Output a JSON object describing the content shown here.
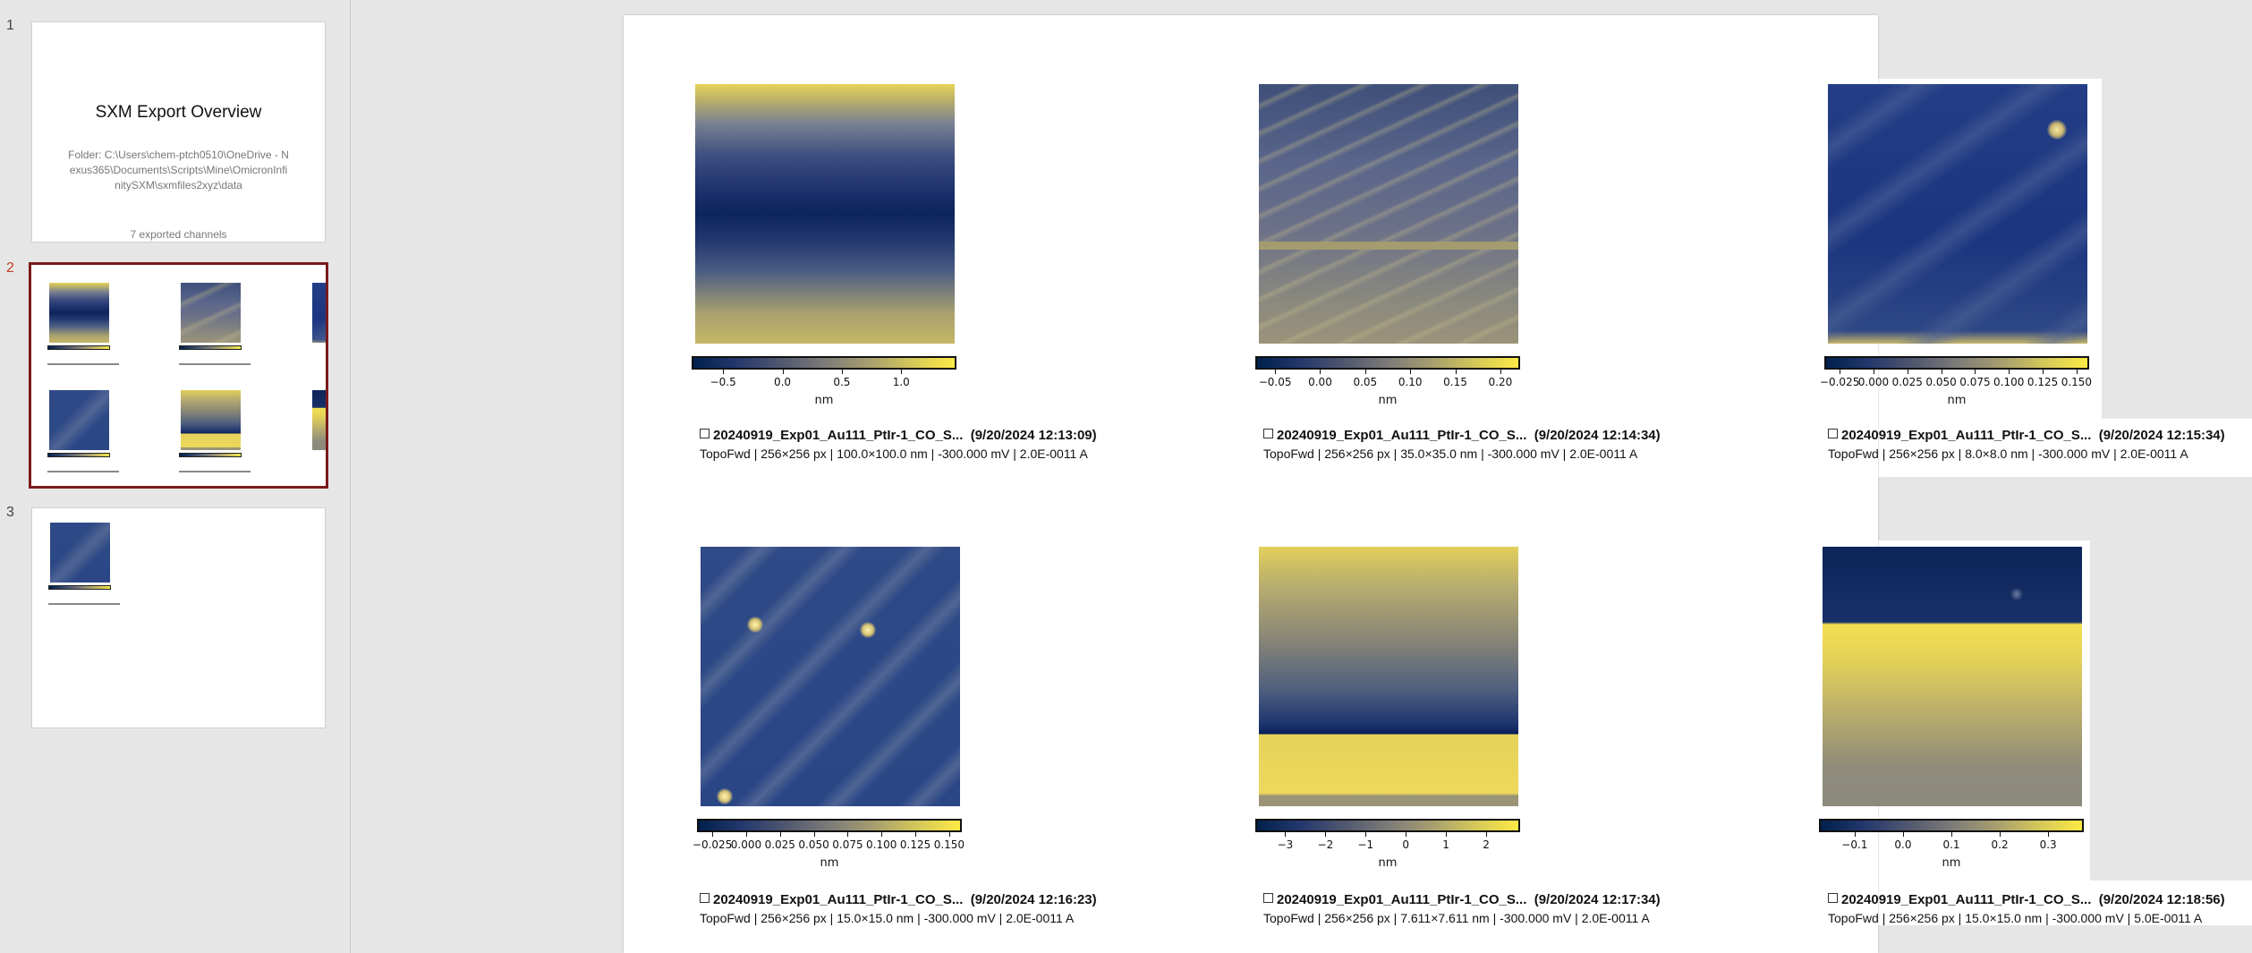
{
  "thumbnails": {
    "numbers": [
      "1",
      "2",
      "3"
    ],
    "slide1": {
      "title": "SXM Export Overview",
      "folder": "Folder: C:\\Users\\chem-ptch0510\\OneDrive - Nexus365\\Documents\\Scripts\\Mine\\OmicronInfinitySXM\\sxmfiles2xyz\\data",
      "channels": "7 exported channels"
    }
  },
  "colors": {
    "colormap": [
      "#00204c",
      "#7c7b78",
      "#fdea45"
    ],
    "active_thumb_border": "#7b1a1a",
    "active_thumb_number": "#c43e1c"
  },
  "panels": [
    {
      "title": "20240919_Exp01_Au111_PtIr-1_CO_S...",
      "timestamp": "(9/20/2024 12:13:09)",
      "meta": "TopoFwd | 256×256 px | 100.0×100.0 nm | -300.000 mV | 2.0E-0011 A",
      "colorbar": {
        "min": -0.75,
        "max": 1.45,
        "ticks": [
          -0.5,
          0.0,
          0.5,
          1.0
        ],
        "tick_labels": [
          "−0.5",
          "0.0",
          "0.5",
          "1.0"
        ],
        "unit": "nm"
      }
    },
    {
      "title": "20240919_Exp01_Au111_PtIr-1_CO_S...",
      "timestamp": "(9/20/2024 12:14:34)",
      "meta": "TopoFwd | 256×256 px | 35.0×35.0 nm | -300.000 mV | 2.0E-0011 A",
      "colorbar": {
        "min": -0.07,
        "max": 0.22,
        "ticks": [
          -0.05,
          0.0,
          0.05,
          0.1,
          0.15,
          0.2
        ],
        "tick_labels": [
          "−0.05",
          "0.00",
          "0.05",
          "0.10",
          "0.15",
          "0.20"
        ],
        "unit": "nm"
      }
    },
    {
      "title": "20240919_Exp01_Au111_PtIr-1_CO_S...",
      "timestamp": "(9/20/2024 12:15:34)",
      "meta": "TopoFwd | 256×256 px | 8.0×8.0 nm | -300.000 mV | 2.0E-0011 A",
      "colorbar": {
        "min": -0.035,
        "max": 0.158,
        "ticks": [
          -0.025,
          0.0,
          0.025,
          0.05,
          0.075,
          0.1,
          0.125,
          0.15
        ],
        "tick_labels": [
          "−0.025",
          "0.000",
          "0.025",
          "0.050",
          "0.075",
          "0.100",
          "0.125",
          "0.150"
        ],
        "unit": "nm"
      }
    },
    {
      "title": "20240919_Exp01_Au111_PtIr-1_CO_S...",
      "timestamp": "(9/20/2024 12:16:23)",
      "meta": "TopoFwd | 256×256 px | 15.0×15.0 nm | -300.000 mV | 2.0E-0011 A",
      "colorbar": {
        "min": -0.035,
        "max": 0.158,
        "ticks": [
          -0.025,
          0.0,
          0.025,
          0.05,
          0.075,
          0.1,
          0.125,
          0.15
        ],
        "tick_labels": [
          "−0.025",
          "0.000",
          "0.025",
          "0.050",
          "0.075",
          "0.100",
          "0.125",
          "0.150"
        ],
        "unit": "nm"
      }
    },
    {
      "title": "20240919_Exp01_Au111_PtIr-1_CO_S...",
      "timestamp": "(9/20/2024 12:17:34)",
      "meta": "TopoFwd | 256×256 px | 7.611×7.611 nm | -300.000 mV | 2.0E-0011 A",
      "colorbar": {
        "min": -3.7,
        "max": 2.8,
        "ticks": [
          -3,
          -2,
          -1,
          0,
          1,
          2
        ],
        "tick_labels": [
          "−3",
          "−2",
          "−1",
          "0",
          "1",
          "2"
        ],
        "unit": "nm"
      }
    },
    {
      "title": "20240919_Exp01_Au111_PtIr-1_CO_S...",
      "timestamp": "(9/20/2024 12:18:56)",
      "meta": "TopoFwd | 256×256 px | 15.0×15.0 nm | -300.000 mV | 5.0E-0011 A",
      "colorbar": {
        "min": -0.17,
        "max": 0.37,
        "ticks": [
          -0.1,
          0.0,
          0.1,
          0.2,
          0.3
        ],
        "tick_labels": [
          "−0.1",
          "0.0",
          "0.1",
          "0.2",
          "0.3"
        ],
        "unit": "nm"
      }
    }
  ]
}
